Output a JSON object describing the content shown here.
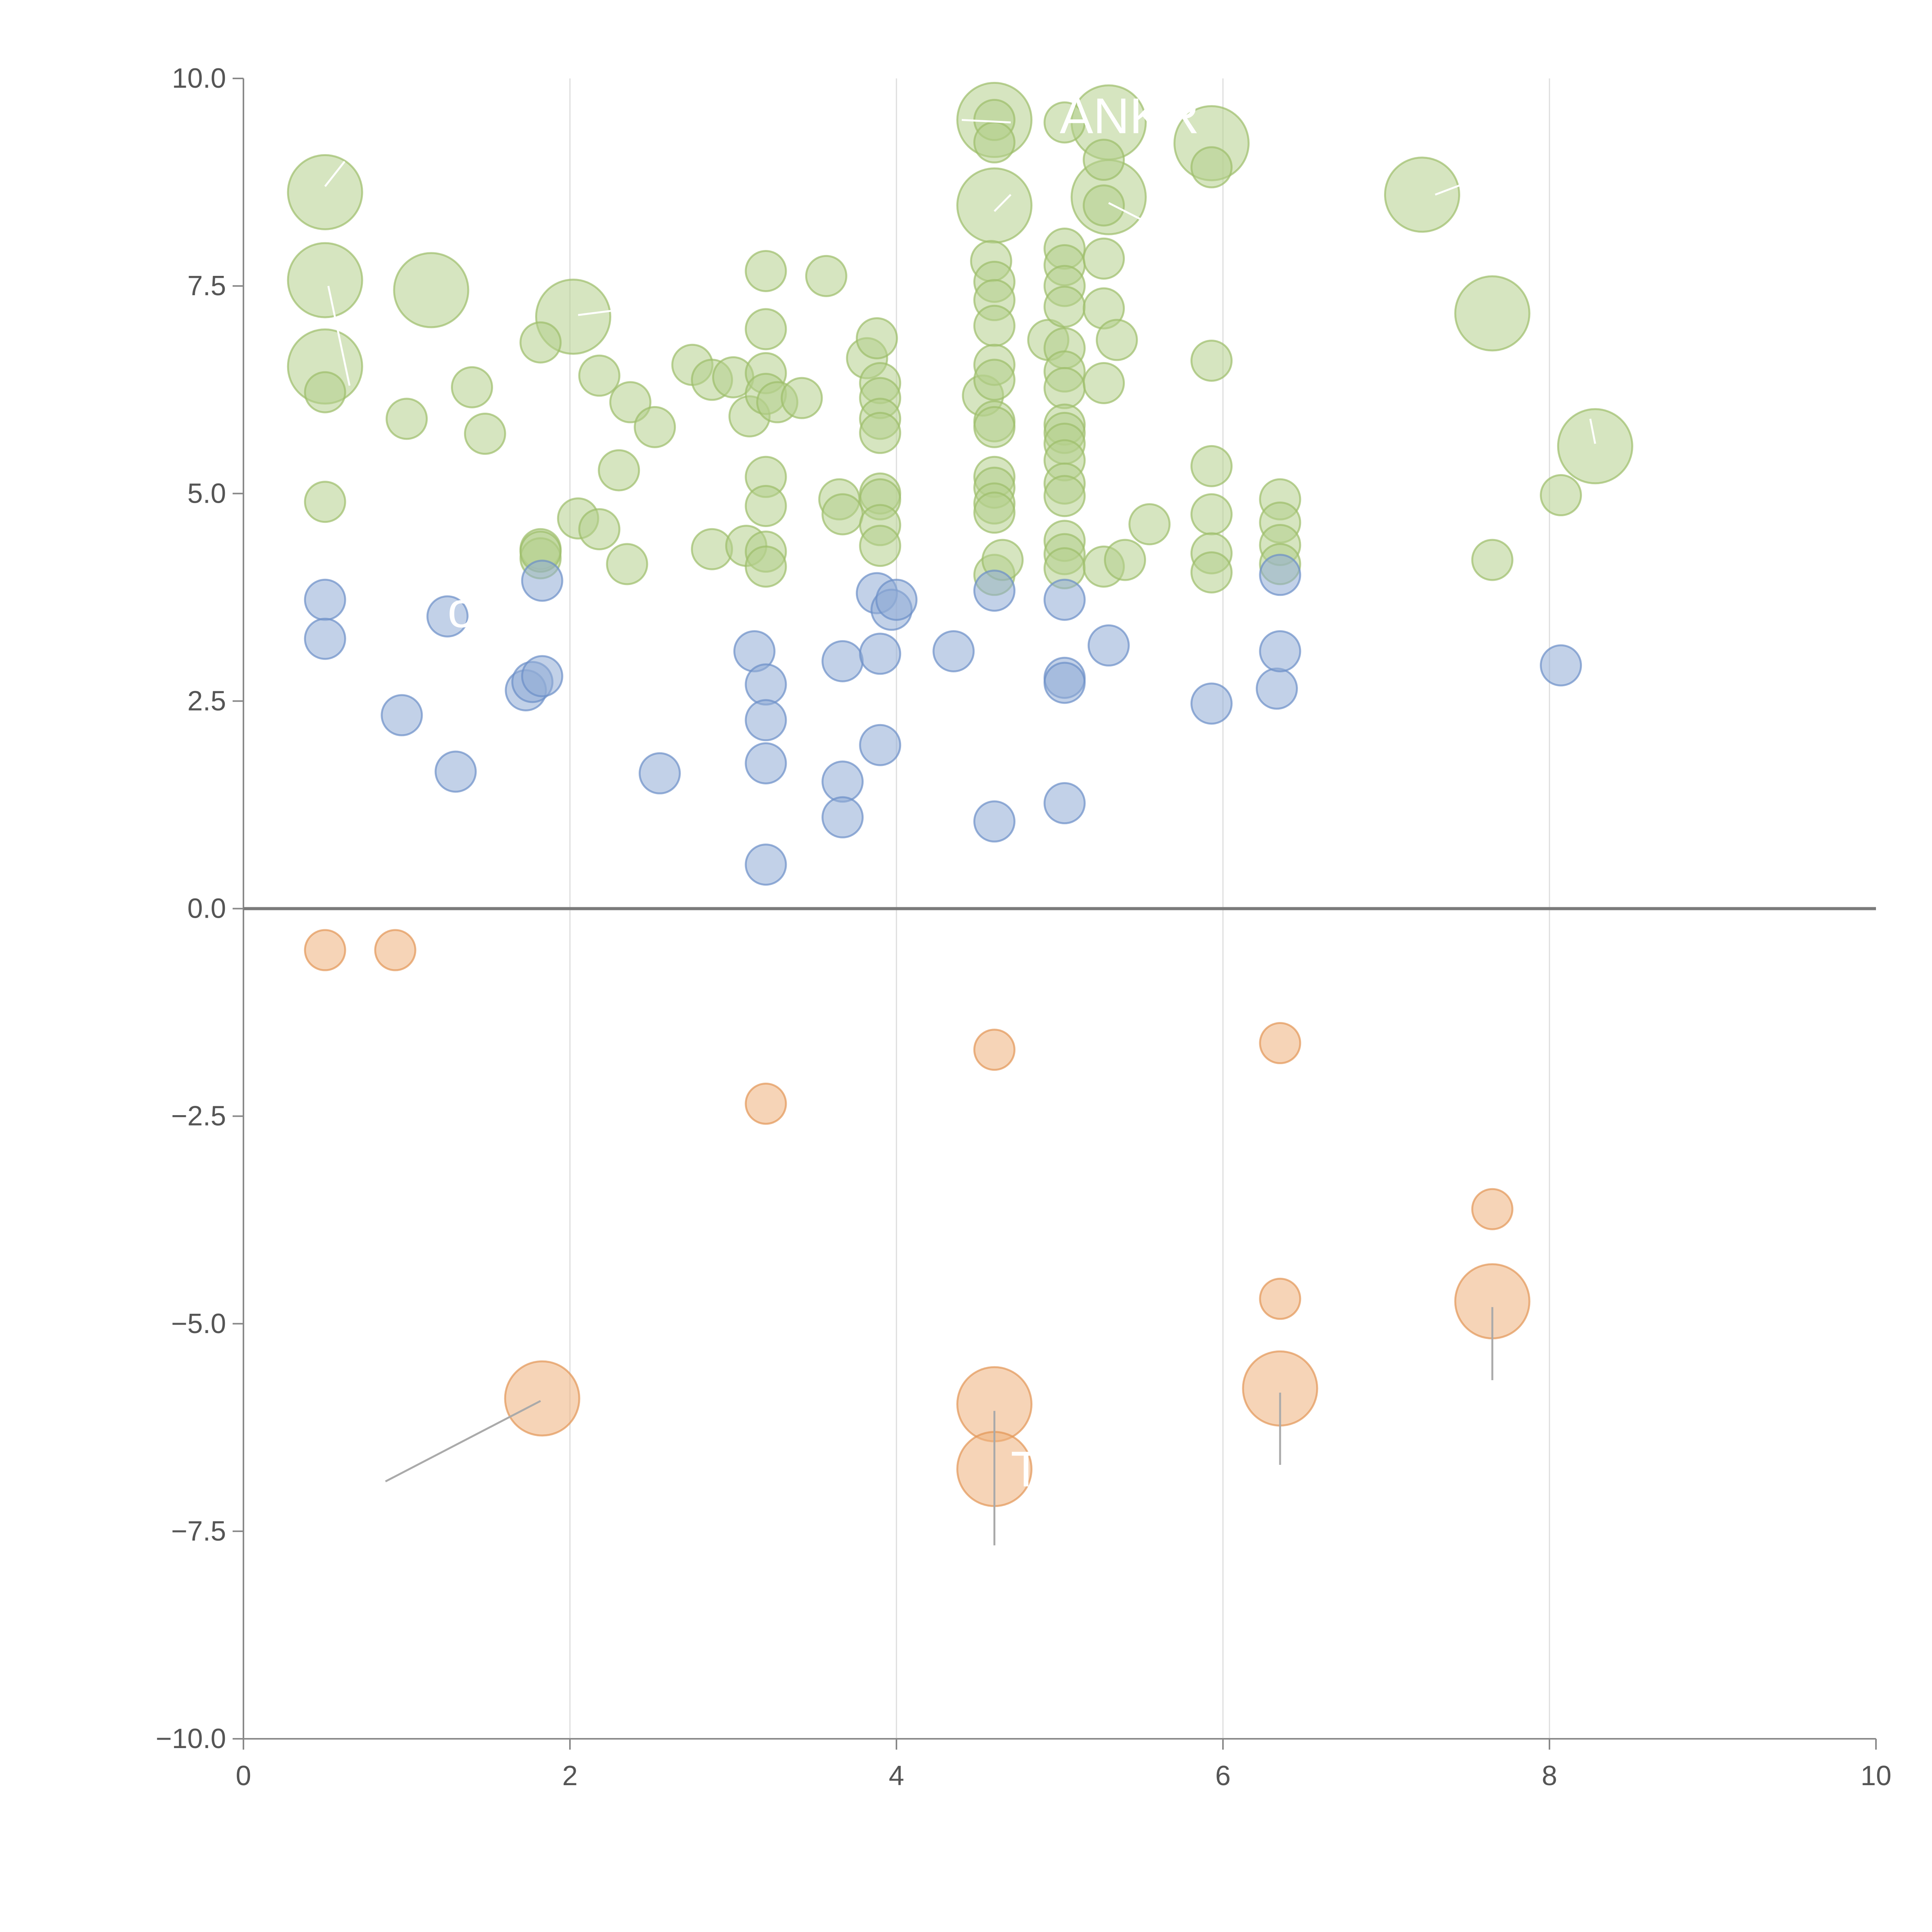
{
  "chart_data": {
    "type": "scatter",
    "title": "",
    "xlabel": "",
    "ylabel": "",
    "xlim": [
      0,
      10
    ],
    "ylim": [
      -10,
      10
    ],
    "x_ticks": [
      0,
      2,
      4,
      6,
      8,
      10
    ],
    "x_tick_labels": [
      "0",
      "2",
      "4",
      "6",
      "8",
      "10"
    ],
    "y_ticks": [
      10,
      7.5,
      5,
      2.5,
      0,
      -2.5,
      -5,
      -7.5,
      -10
    ],
    "y_tick_labels": [
      "10.0",
      "7.5",
      "5.0",
      "2.5",
      "0.0",
      "−2.5",
      "−5.0",
      "−7.5",
      "−10.0"
    ],
    "grid": "vertical",
    "zero_line": true,
    "colors": {
      "green_fill": "#b5cf8c",
      "green_stroke": "#9cbd6a",
      "blue_fill": "#8fabd6",
      "blue_stroke": "#6b8ec7",
      "orange_fill": "#eeb07c",
      "orange_stroke": "#e39555",
      "axis": "#888888",
      "grid": "#dddddd",
      "zero": "#7a7a7a",
      "leader_light": "#ffffff",
      "leader_dark": "#aaaaaa"
    },
    "series": [
      {
        "name": "green",
        "points": [
          [
            0.5,
            8.63,
            2
          ],
          [
            0.5,
            7.57,
            2
          ],
          [
            0.5,
            6.53,
            2
          ],
          [
            1.15,
            7.45,
            2
          ],
          [
            2.02,
            7.13,
            2
          ],
          [
            4.6,
            9.5,
            2
          ],
          [
            5.3,
            9.47,
            2
          ],
          [
            5.93,
            9.22,
            2
          ],
          [
            4.6,
            8.47,
            2
          ],
          [
            5.3,
            8.57,
            2
          ],
          [
            7.22,
            8.6,
            2
          ],
          [
            7.65,
            7.17,
            2
          ],
          [
            8.28,
            5.57,
            2
          ],
          [
            0.5,
            6.22,
            1
          ],
          [
            0.5,
            4.9,
            1
          ],
          [
            1.0,
            5.9,
            1
          ],
          [
            1.4,
            6.28,
            1
          ],
          [
            1.48,
            5.72,
            1
          ],
          [
            1.82,
            6.82,
            1
          ],
          [
            1.82,
            4.33,
            1
          ],
          [
            1.82,
            4.22,
            1
          ],
          [
            1.82,
            4.3,
            1
          ],
          [
            2.05,
            4.7,
            1
          ],
          [
            2.18,
            6.42,
            1
          ],
          [
            2.18,
            4.57,
            1
          ],
          [
            2.3,
            5.28,
            1
          ],
          [
            2.35,
            4.15,
            1
          ],
          [
            2.37,
            6.1,
            1
          ],
          [
            2.52,
            5.8,
            1
          ],
          [
            2.75,
            6.55,
            1
          ],
          [
            2.87,
            6.37,
            1
          ],
          [
            2.87,
            4.33,
            1
          ],
          [
            3.0,
            6.4,
            1
          ],
          [
            3.08,
            4.37,
            1
          ],
          [
            3.1,
            5.93,
            1
          ],
          [
            3.2,
            7.68,
            1
          ],
          [
            3.2,
            6.98,
            1
          ],
          [
            3.2,
            6.45,
            1
          ],
          [
            3.2,
            6.2,
            1
          ],
          [
            3.2,
            5.2,
            1
          ],
          [
            3.2,
            4.85,
            1
          ],
          [
            3.2,
            4.3,
            1
          ],
          [
            3.2,
            4.12,
            1
          ],
          [
            3.27,
            6.1,
            1
          ],
          [
            3.42,
            6.15,
            1
          ],
          [
            3.57,
            7.62,
            1
          ],
          [
            3.65,
            4.93,
            1
          ],
          [
            3.67,
            4.75,
            1
          ],
          [
            3.82,
            6.63,
            1
          ],
          [
            3.88,
            6.87,
            1
          ],
          [
            3.9,
            6.33,
            1
          ],
          [
            3.9,
            6.15,
            1
          ],
          [
            3.9,
            5.9,
            1
          ],
          [
            3.9,
            5.73,
            1
          ],
          [
            3.9,
            5.0,
            1
          ],
          [
            3.9,
            4.93,
            1
          ],
          [
            3.9,
            4.62,
            1
          ],
          [
            3.9,
            4.37,
            1
          ],
          [
            4.53,
            6.18,
            1
          ],
          [
            4.58,
            7.8,
            1
          ],
          [
            4.6,
            9.5,
            1
          ],
          [
            4.6,
            9.23,
            1
          ],
          [
            4.6,
            7.55,
            1
          ],
          [
            4.6,
            7.33,
            1
          ],
          [
            4.6,
            7.02,
            1
          ],
          [
            4.6,
            6.55,
            1
          ],
          [
            4.6,
            6.37,
            1
          ],
          [
            4.6,
            5.87,
            1
          ],
          [
            4.6,
            5.8,
            1
          ],
          [
            4.6,
            5.2,
            1
          ],
          [
            4.6,
            5.07,
            1
          ],
          [
            4.6,
            4.88,
            1
          ],
          [
            4.6,
            4.77,
            1
          ],
          [
            4.6,
            4.02,
            1
          ],
          [
            4.65,
            4.2,
            1
          ],
          [
            4.93,
            6.85,
            1
          ],
          [
            5.03,
            9.47,
            1
          ],
          [
            5.03,
            7.95,
            1
          ],
          [
            5.03,
            7.75,
            1
          ],
          [
            5.03,
            7.5,
            1
          ],
          [
            5.03,
            7.25,
            1
          ],
          [
            5.03,
            6.75,
            1
          ],
          [
            5.03,
            6.47,
            1
          ],
          [
            5.03,
            6.27,
            1
          ],
          [
            5.03,
            5.83,
            1
          ],
          [
            5.03,
            5.73,
            1
          ],
          [
            5.03,
            5.6,
            1
          ],
          [
            5.03,
            5.4,
            1
          ],
          [
            5.03,
            5.12,
            1
          ],
          [
            5.03,
            4.97,
            1
          ],
          [
            5.03,
            4.43,
            1
          ],
          [
            5.03,
            4.27,
            1
          ],
          [
            5.03,
            4.1,
            1
          ],
          [
            5.27,
            9.02,
            1
          ],
          [
            5.27,
            8.47,
            1
          ],
          [
            5.27,
            7.83,
            1
          ],
          [
            5.27,
            7.23,
            1
          ],
          [
            5.27,
            6.33,
            1
          ],
          [
            5.27,
            4.12,
            1
          ],
          [
            5.35,
            6.85,
            1
          ],
          [
            5.4,
            4.2,
            1
          ],
          [
            5.55,
            4.63,
            1
          ],
          [
            5.93,
            8.93,
            1
          ],
          [
            5.93,
            6.6,
            1
          ],
          [
            5.93,
            5.33,
            1
          ],
          [
            5.93,
            4.75,
            1
          ],
          [
            5.93,
            4.28,
            1
          ],
          [
            5.93,
            4.05,
            1
          ],
          [
            6.35,
            4.93,
            1
          ],
          [
            6.35,
            4.65,
            1
          ],
          [
            6.35,
            4.38,
            1
          ],
          [
            6.35,
            4.15,
            1
          ],
          [
            7.65,
            4.2,
            1
          ],
          [
            8.07,
            4.98,
            1
          ]
        ]
      },
      {
        "name": "blue",
        "points": [
          [
            0.5,
            3.72,
            1
          ],
          [
            0.5,
            3.25,
            1
          ],
          [
            0.97,
            2.33,
            1
          ],
          [
            1.25,
            3.52,
            1
          ],
          [
            1.3,
            1.65,
            1
          ],
          [
            1.73,
            2.63,
            1
          ],
          [
            1.77,
            2.73,
            1
          ],
          [
            1.83,
            2.8,
            1
          ],
          [
            1.83,
            3.95,
            1
          ],
          [
            2.55,
            1.63,
            1
          ],
          [
            3.13,
            3.1,
            1
          ],
          [
            3.2,
            2.7,
            1
          ],
          [
            3.2,
            2.27,
            1
          ],
          [
            3.2,
            1.75,
            1
          ],
          [
            3.2,
            0.53,
            1
          ],
          [
            3.67,
            2.98,
            1
          ],
          [
            3.67,
            1.53,
            1
          ],
          [
            3.67,
            1.1,
            1
          ],
          [
            3.88,
            3.8,
            1
          ],
          [
            3.9,
            3.07,
            1
          ],
          [
            3.9,
            1.97,
            1
          ],
          [
            3.97,
            3.6,
            1
          ],
          [
            4.0,
            3.72,
            1
          ],
          [
            4.35,
            3.1,
            1
          ],
          [
            4.6,
            3.83,
            1
          ],
          [
            4.6,
            1.05,
            1
          ],
          [
            5.03,
            3.72,
            1
          ],
          [
            5.03,
            2.78,
            1
          ],
          [
            5.03,
            2.72,
            1
          ],
          [
            5.03,
            1.27,
            1
          ],
          [
            5.3,
            3.17,
            1
          ],
          [
            5.93,
            2.47,
            1
          ],
          [
            6.33,
            2.65,
            1
          ],
          [
            6.35,
            4.02,
            1
          ],
          [
            6.35,
            3.1,
            1
          ],
          [
            8.07,
            2.93,
            1
          ]
        ]
      },
      {
        "name": "orange",
        "points": [
          [
            0.5,
            -0.5,
            1
          ],
          [
            0.93,
            -0.5,
            1
          ],
          [
            3.2,
            -2.35,
            1
          ],
          [
            4.6,
            -1.7,
            1
          ],
          [
            6.35,
            -1.62,
            1
          ],
          [
            7.65,
            -3.62,
            1
          ],
          [
            6.35,
            -4.7,
            1
          ],
          [
            1.83,
            -5.9,
            2
          ],
          [
            4.6,
            -5.97,
            2
          ],
          [
            4.6,
            -6.75,
            2
          ],
          [
            6.35,
            -5.78,
            2
          ],
          [
            7.65,
            -4.73,
            2
          ]
        ]
      }
    ],
    "annotations": [
      {
        "text": "ANKR",
        "x": 5.0,
        "y": 9.55,
        "color": "light"
      },
      {
        "text": "ou",
        "x": 1.25,
        "y": 3.6,
        "color": "light"
      },
      {
        "text": "T",
        "x": 4.7,
        "y": -6.75,
        "color": "light"
      }
    ],
    "leader_lines": [
      {
        "from": [
          0.5,
          8.7
        ],
        "to": [
          0.62,
          9.0
        ],
        "color": "light"
      },
      {
        "from": [
          0.52,
          7.5
        ],
        "to": [
          0.65,
          6.3
        ],
        "color": "light"
      },
      {
        "from": [
          2.05,
          7.15
        ],
        "to": [
          2.25,
          7.2
        ],
        "color": "light"
      },
      {
        "from": [
          4.4,
          9.5
        ],
        "to": [
          4.7,
          9.47
        ],
        "color": "light"
      },
      {
        "from": [
          4.6,
          8.4
        ],
        "to": [
          4.7,
          8.6
        ],
        "color": "light"
      },
      {
        "from": [
          5.3,
          8.5
        ],
        "to": [
          5.55,
          8.25
        ],
        "color": "light"
      },
      {
        "from": [
          7.3,
          8.6
        ],
        "to": [
          7.5,
          8.75
        ],
        "color": "light"
      },
      {
        "from": [
          8.28,
          5.6
        ],
        "to": [
          8.25,
          5.9
        ],
        "color": "light"
      },
      {
        "from": [
          1.82,
          -5.93
        ],
        "to": [
          0.87,
          -6.9
        ],
        "color": "dark"
      },
      {
        "from": [
          4.6,
          -6.05
        ],
        "to": [
          4.6,
          -7.67
        ],
        "color": "dark"
      },
      {
        "from": [
          6.35,
          -5.83
        ],
        "to": [
          6.35,
          -6.7
        ],
        "color": "dark"
      },
      {
        "from": [
          7.65,
          -4.8
        ],
        "to": [
          7.65,
          -5.68
        ],
        "color": "dark"
      }
    ]
  }
}
